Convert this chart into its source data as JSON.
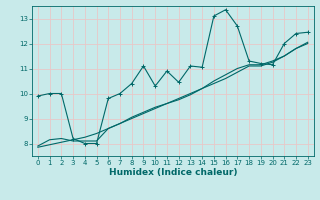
{
  "title": "",
  "xlabel": "Humidex (Indice chaleur)",
  "background_color": "#c8eaea",
  "grid_color": "#e8c8c8",
  "line_color": "#006868",
  "xlim": [
    -0.5,
    23.5
  ],
  "ylim": [
    7.5,
    13.5
  ],
  "xticks": [
    0,
    1,
    2,
    3,
    4,
    5,
    6,
    7,
    8,
    9,
    10,
    11,
    12,
    13,
    14,
    15,
    16,
    17,
    18,
    19,
    20,
    21,
    22,
    23
  ],
  "yticks": [
    8,
    9,
    10,
    11,
    12,
    13
  ],
  "line1_x": [
    0,
    1,
    2,
    3,
    4,
    5,
    6,
    7,
    8,
    9,
    10,
    11,
    12,
    13,
    14,
    15,
    16,
    17,
    18,
    19,
    20,
    21,
    22,
    23
  ],
  "line1_y": [
    9.9,
    10.0,
    10.0,
    8.2,
    8.0,
    8.0,
    9.8,
    10.0,
    10.4,
    11.1,
    10.3,
    10.9,
    10.45,
    11.1,
    11.05,
    13.1,
    13.35,
    12.7,
    11.3,
    11.2,
    11.15,
    12.0,
    12.4,
    12.45
  ],
  "line2_x": [
    0,
    1,
    2,
    3,
    4,
    5,
    6,
    7,
    8,
    9,
    10,
    11,
    12,
    13,
    14,
    15,
    16,
    17,
    18,
    19,
    20,
    21,
    22,
    23
  ],
  "line2_y": [
    7.9,
    8.15,
    8.2,
    8.1,
    8.1,
    8.1,
    8.6,
    8.8,
    9.05,
    9.25,
    9.45,
    9.6,
    9.75,
    9.95,
    10.2,
    10.5,
    10.75,
    11.0,
    11.15,
    11.15,
    11.3,
    11.5,
    11.8,
    12.0
  ],
  "line3_x": [
    0,
    1,
    2,
    3,
    4,
    5,
    6,
    7,
    8,
    9,
    10,
    11,
    12,
    13,
    14,
    15,
    16,
    17,
    18,
    19,
    20,
    21,
    22,
    23
  ],
  "line3_y": [
    7.85,
    7.95,
    8.05,
    8.15,
    8.25,
    8.4,
    8.6,
    8.8,
    9.0,
    9.2,
    9.4,
    9.6,
    9.8,
    10.0,
    10.2,
    10.4,
    10.6,
    10.85,
    11.1,
    11.1,
    11.25,
    11.5,
    11.8,
    12.05
  ]
}
